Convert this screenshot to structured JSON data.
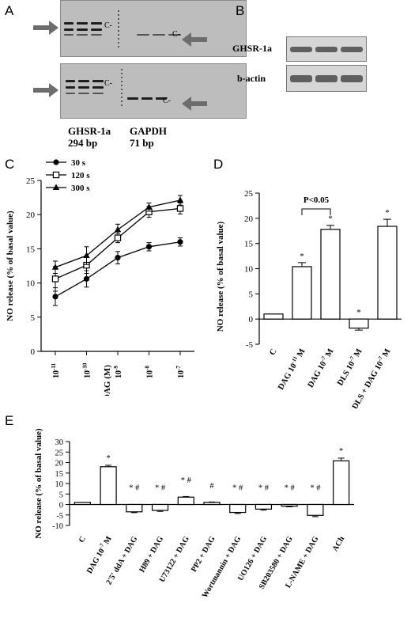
{
  "panels": {
    "A": {
      "label": "A",
      "captions": [
        {
          "name": "GHSR-1a",
          "size": "294 bp"
        },
        {
          "name": "GAPDH",
          "size": "71 bp"
        }
      ],
      "band_markers": [
        "C-",
        "C-",
        "C-",
        "C-"
      ]
    },
    "B": {
      "label": "B",
      "rows": [
        "GHSR-1a",
        "b-actin"
      ]
    },
    "C": {
      "label": "C"
    },
    "D": {
      "label": "D",
      "significance": "P<0.05"
    },
    "E": {
      "label": "E"
    }
  },
  "chart_data": [
    {
      "id": "C",
      "type": "line",
      "ylabel": "NO release (% of basal value)",
      "xlabel": "DAG (M)",
      "x": [
        "10^-11",
        "10^-10",
        "10^-9",
        "10^-8",
        "10^-7"
      ],
      "ylim": [
        0,
        25
      ],
      "yticks": [
        0,
        5,
        10,
        15,
        20,
        25
      ],
      "series": [
        {
          "name": "30 s",
          "marker": "filled-circle",
          "values": [
            8.0,
            10.6,
            13.7,
            15.3,
            16.0
          ],
          "errors": [
            1.3,
            1.2,
            0.9,
            0.6,
            0.6
          ]
        },
        {
          "name": "120 s",
          "marker": "open-square",
          "values": [
            10.6,
            12.6,
            16.6,
            20.4,
            20.9
          ],
          "errors": [
            1.8,
            1.2,
            0.7,
            0.8,
            0.8
          ]
        },
        {
          "name": "300 s",
          "marker": "filled-triangle",
          "values": [
            12.3,
            14.0,
            17.8,
            21.1,
            22.1
          ],
          "errors": [
            0.9,
            1.3,
            0.8,
            0.6,
            0.7
          ]
        }
      ],
      "legend_position": "top-left"
    },
    {
      "id": "D",
      "type": "bar",
      "ylabel": "NO release (% of basal value)",
      "categories": [
        "C",
        "DAG 10^-11 M",
        "DAG 10^-7 M",
        "DLS 10^-7 M",
        "DLS + DAG 10^-7 M"
      ],
      "values": [
        1.0,
        10.4,
        17.8,
        -1.8,
        18.4
      ],
      "errors": [
        0.0,
        0.8,
        0.8,
        0.4,
        1.4
      ],
      "stars": [
        "",
        "*",
        "*",
        "*",
        "*"
      ],
      "ylim": [
        -5,
        25
      ],
      "yticks": [
        -5,
        0,
        5,
        10,
        15,
        20,
        25
      ]
    },
    {
      "id": "E",
      "type": "bar",
      "ylabel": "NO release (% of basal value)",
      "categories": [
        "C",
        "DAG 10^-7 M",
        "2'5' ddA + DAG",
        "H89 + DAG",
        "U73122 + DAG",
        "PP2 + DAG",
        "Wortmannin + DAG",
        "UO126 + DAG",
        "SB203580 + DAG",
        "L-NAME + DAG",
        "ACh"
      ],
      "values": [
        1.0,
        18.0,
        -3.5,
        -2.8,
        3.5,
        1.0,
        -3.8,
        -2.2,
        -0.8,
        -5.2,
        20.8
      ],
      "errors": [
        0.0,
        0.7,
        0.4,
        0.5,
        0.3,
        0.2,
        0.5,
        0.5,
        0.3,
        0.6,
        1.3
      ],
      "annotations": [
        "",
        "*",
        "* #",
        "* #",
        "* #",
        "#",
        "* #",
        "* #",
        "* #",
        "* #",
        "*"
      ],
      "ylim": [
        -10,
        30
      ],
      "yticks": [
        -10,
        -5,
        0,
        5,
        10,
        15,
        20,
        25,
        30
      ]
    }
  ]
}
